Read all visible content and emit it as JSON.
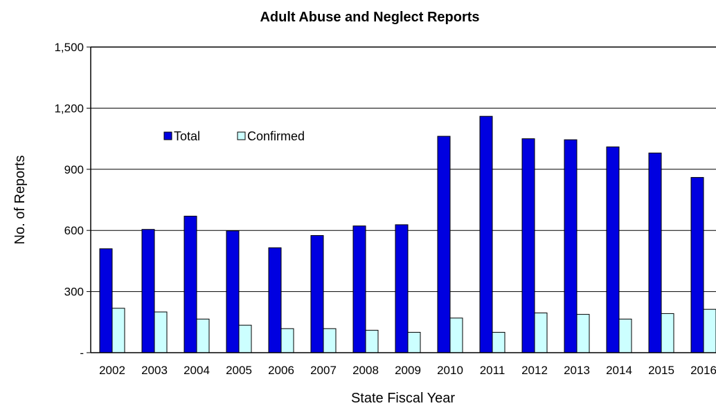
{
  "chart_data": {
    "type": "bar",
    "title": "Adult Abuse and Neglect Reports",
    "xlabel": "State Fiscal Year",
    "ylabel": "No. of Reports",
    "ylim": [
      0,
      1500
    ],
    "yticks": [
      0,
      300,
      600,
      900,
      1200,
      1500
    ],
    "ytick_labels": [
      "-",
      "300",
      "600",
      "900",
      "1,200",
      "1,500"
    ],
    "categories": [
      "2002",
      "2003",
      "2004",
      "2005",
      "2006",
      "2007",
      "2008",
      "2009",
      "2010",
      "2011",
      "2012",
      "2013",
      "2014",
      "2015",
      "2016"
    ],
    "series": [
      {
        "name": "Total",
        "color": "#0000e0",
        "values": [
          510,
          605,
          670,
          598,
          515,
          575,
          622,
          628,
          1062,
          1160,
          1050,
          1045,
          1010,
          980,
          860
        ]
      },
      {
        "name": "Confirmed",
        "color": "#ccffff",
        "values": [
          218,
          200,
          165,
          135,
          118,
          118,
          110,
          100,
          170,
          100,
          195,
          188,
          165,
          192,
          213
        ]
      }
    ],
    "grid": "horizontal",
    "legend": "upper-left"
  }
}
